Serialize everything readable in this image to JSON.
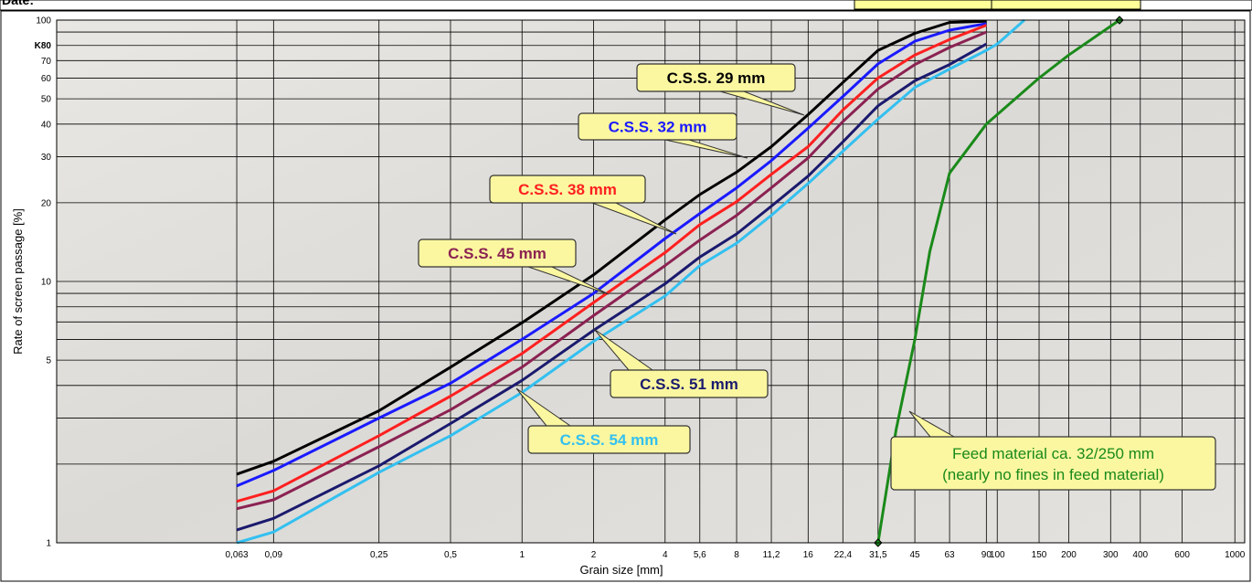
{
  "header": {
    "date_label": "Date:"
  },
  "chart_data": {
    "type": "line",
    "x_label": "Grain size [mm]",
    "y_label": "Rate of screen passage [%]",
    "log_x": true,
    "log_y": true,
    "grid": true,
    "xlim": [
      0.011,
      1100
    ],
    "ylim": [
      1,
      100
    ],
    "xticks": [
      {
        "value": 0.063,
        "label": "0,063"
      },
      {
        "value": 0.09,
        "label": "0,09"
      },
      {
        "value": 0.25,
        "label": "0,25"
      },
      {
        "value": 0.5,
        "label": "0,5"
      },
      1,
      2,
      4,
      {
        "value": 5.6,
        "label": "5,6"
      },
      8,
      {
        "value": 11.2,
        "label": "11,2"
      },
      16,
      {
        "value": 22.4,
        "label": "22,4"
      },
      {
        "value": 31.5,
        "label": "31,5"
      },
      45,
      63,
      90,
      100,
      150,
      200,
      300,
      400,
      600,
      1000
    ],
    "yticks": [
      1,
      5,
      10,
      20,
      30,
      40,
      50,
      60,
      70,
      {
        "value": 80,
        "label": "K80"
      },
      100
    ],
    "y_minor_grid": [
      2,
      3,
      4,
      6,
      7,
      8,
      9,
      90
    ],
    "series": [
      {
        "name": "C.S.S. 29 mm",
        "color": "#000000",
        "x": [
          0.063,
          0.09,
          0.25,
          0.5,
          1,
          2,
          4,
          5.6,
          8,
          11.2,
          16,
          22.4,
          31.5,
          45,
          63,
          90
        ],
        "values": [
          1.83,
          2.05,
          3.2,
          4.7,
          6.95,
          10.6,
          17.2,
          21.5,
          26.2,
          32.8,
          43.5,
          57.7,
          76.6,
          89,
          98,
          99
        ]
      },
      {
        "name": "C.S.S. 32 mm",
        "color": "#1a1aff",
        "x": [
          0.063,
          0.09,
          0.25,
          0.5,
          1,
          2,
          4,
          5.6,
          8,
          11.2,
          16,
          22.4,
          31.5,
          45,
          63,
          90
        ],
        "values": [
          1.65,
          1.89,
          3.0,
          4.08,
          6.0,
          9.0,
          14.6,
          18.2,
          22.8,
          29,
          38.6,
          51,
          68,
          83,
          91.5,
          97
        ]
      },
      {
        "name": "C.S.S. 38 mm",
        "color": "#ff2020",
        "x": [
          0.063,
          0.09,
          0.25,
          0.5,
          1,
          2,
          4,
          5.6,
          8,
          11.2,
          16,
          22.4,
          31.5,
          45,
          63,
          90
        ],
        "values": [
          1.44,
          1.58,
          2.57,
          3.64,
          5.3,
          8.3,
          12.9,
          16.5,
          20.2,
          25.7,
          32.8,
          45.3,
          60,
          73.5,
          84.3,
          95.6
        ]
      },
      {
        "name": "C.S.S. 45 mm",
        "color": "#8b2252",
        "x": [
          0.063,
          0.09,
          0.25,
          0.5,
          1,
          2,
          4,
          5.6,
          8,
          11.2,
          16,
          22.4,
          31.5,
          45,
          63,
          90
        ],
        "values": [
          1.35,
          1.46,
          2.33,
          3.23,
          4.7,
          7.4,
          11.5,
          14.4,
          17.9,
          22.8,
          29.7,
          40.9,
          54.5,
          67.6,
          78.6,
          90
        ]
      },
      {
        "name": "C.S.S. 51 mm",
        "color": "#1a1a6e",
        "x": [
          0.063,
          0.09,
          0.25,
          0.5,
          1,
          2,
          4,
          5.6,
          8,
          11.2,
          16,
          22.4,
          31.5,
          45,
          63,
          90
        ],
        "values": [
          1.12,
          1.24,
          1.97,
          2.86,
          4.18,
          6.5,
          9.8,
          12.4,
          15.2,
          19.4,
          25.3,
          34.2,
          47,
          58.6,
          67.6,
          81
        ]
      },
      {
        "name": "C.S.S. 54 mm",
        "color": "#33c0f0",
        "x": [
          0.063,
          0.09,
          0.25,
          0.5,
          1,
          2,
          4,
          5.6,
          8,
          11.2,
          16,
          22.4,
          31.5,
          45,
          63,
          90,
          100,
          130
        ],
        "values": [
          1.0,
          1.1,
          1.86,
          2.57,
          3.76,
          5.9,
          8.8,
          11.5,
          14.0,
          17.9,
          23.7,
          31.5,
          41.8,
          55.3,
          65,
          76.6,
          81,
          100
        ]
      },
      {
        "name": "Feed material ca. 32/250 mm",
        "note": "(nearly no fines in feed material)",
        "color": "#1a8a1a",
        "x": [
          31.5,
          37.5,
          45,
          52,
          63,
          90,
          150,
          200,
          327
        ],
        "values": [
          1,
          2.7,
          6,
          13,
          26,
          40,
          60,
          73.5,
          100
        ]
      }
    ]
  }
}
